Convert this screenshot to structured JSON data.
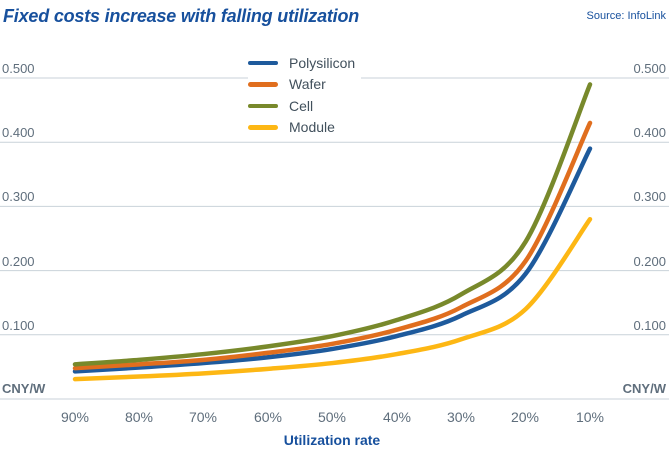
{
  "header": {
    "title": "Fixed costs increase with falling utilization",
    "source": "Source: InfoLink"
  },
  "colors": {
    "title_blue": "#17509d",
    "axis_text": "#5f6e7c",
    "legend_text": "#41505c",
    "gridline": "#c9d2d9"
  },
  "axes": {
    "unit_left": "CNY/W",
    "unit_right": "CNY/W"
  },
  "chart_data": {
    "type": "line",
    "title": "Fixed costs increase with falling utilization",
    "xlabel": "Utilization rate",
    "ylabel": "CNY/W",
    "x_axis_reversed": true,
    "grid": true,
    "legend_position": "top-center-vertical",
    "ylim": [
      0,
      0.5
    ],
    "y_tick_labels": [
      "0.500",
      "0.400",
      "0.300",
      "0.200",
      "0.100"
    ],
    "categories": [
      "90%",
      "80%",
      "70%",
      "60%",
      "50%",
      "40%",
      "30%",
      "20%",
      "10%"
    ],
    "series": [
      {
        "name": "Polysilicon",
        "color": "#1e5a9c",
        "values": [
          0.043,
          0.049,
          0.056,
          0.065,
          0.078,
          0.098,
          0.13,
          0.195,
          0.39
        ]
      },
      {
        "name": "Wafer",
        "color": "#e06e1e",
        "values": [
          0.048,
          0.054,
          0.061,
          0.072,
          0.086,
          0.108,
          0.143,
          0.215,
          0.43
        ]
      },
      {
        "name": "Cell",
        "color": "#78892b",
        "values": [
          0.054,
          0.061,
          0.07,
          0.082,
          0.098,
          0.123,
          0.163,
          0.245,
          0.49
        ]
      },
      {
        "name": "Module",
        "color": "#fdb714",
        "values": [
          0.031,
          0.035,
          0.04,
          0.047,
          0.056,
          0.07,
          0.093,
          0.14,
          0.28
        ]
      }
    ]
  }
}
